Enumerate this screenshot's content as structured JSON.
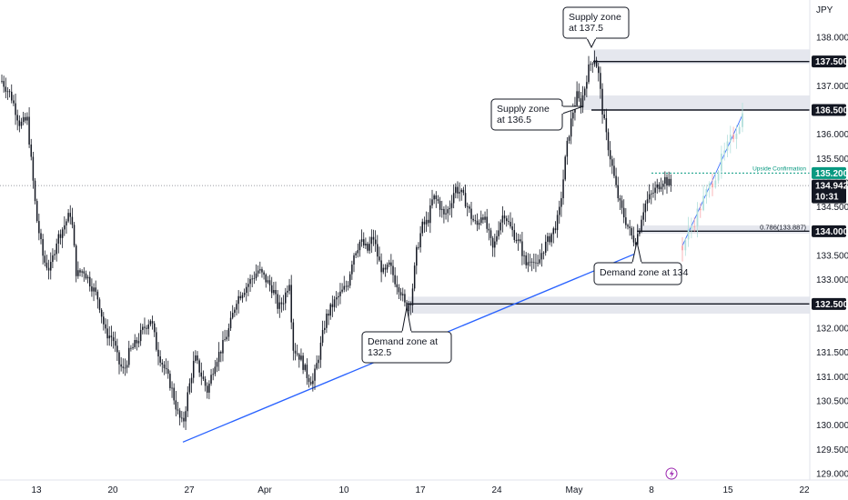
{
  "chart_data": {
    "type": "candlestick",
    "currency_label": "JPY",
    "x_ticks": [
      "13",
      "20",
      "27",
      "Apr",
      "10",
      "17",
      "24",
      "May",
      "8",
      "15",
      "22"
    ],
    "y_ticks": [
      "138.000",
      "137.000",
      "136.000",
      "135.500",
      "135.000",
      "134.500",
      "133.500",
      "133.000",
      "132.000",
      "131.500",
      "131.000",
      "130.500",
      "130.000",
      "129.500",
      "129.000"
    ],
    "y_tick_values": [
      138.0,
      137.0,
      136.0,
      135.5,
      135.0,
      134.5,
      133.5,
      133.0,
      132.0,
      131.5,
      131.0,
      130.5,
      130.0,
      129.5,
      129.0
    ],
    "price_levels": [
      {
        "label": "137.500",
        "value": 137.5
      },
      {
        "label": "136.500",
        "value": 136.5
      },
      {
        "label": "134.000",
        "value": 134.0
      },
      {
        "label": "132.500",
        "value": 132.5
      }
    ],
    "current_price": {
      "label": "134.942",
      "countdown": "10:31",
      "value": 134.942
    },
    "upside_target": {
      "label": "135.200",
      "value": 135.2,
      "text": "Upside Confirmation"
    },
    "fib_label": "0.786(133.887)",
    "zones": [
      {
        "name": "Supply zone at 137.5",
        "low": 137.45,
        "high": 137.75
      },
      {
        "name": "Supply zone at 136.5",
        "low": 136.5,
        "high": 136.8
      },
      {
        "name": "Demand zone at 134",
        "low": 133.95,
        "high": 134.12
      },
      {
        "name": "Demand zone at 132.5",
        "low": 132.3,
        "high": 132.65
      }
    ],
    "annotations": [
      {
        "key": "supply_1375",
        "lines": [
          "Supply zone",
          "at 137.5"
        ]
      },
      {
        "key": "supply_1365",
        "lines": [
          "Supply zone",
          "at 136.5"
        ]
      },
      {
        "key": "demand_134",
        "lines": [
          "Demand zone at 134"
        ]
      },
      {
        "key": "demand_1325",
        "lines": [
          "Demand zone at",
          "132.5"
        ]
      }
    ],
    "trendline": {
      "from_price": 129.65,
      "to_price": 133.55
    },
    "colors": {
      "up": "#131722",
      "down": "#131722",
      "zone": "#e0e3eb",
      "trendline": "#2962ff",
      "upside": "#089981",
      "projection_up": "#b2dfdb",
      "projection_down": "#f7a5a9",
      "projection_line": "#2962ff",
      "lightning": "#9c27b0"
    },
    "projection": {
      "start_price": 133.7,
      "end_price": 136.4
    }
  }
}
